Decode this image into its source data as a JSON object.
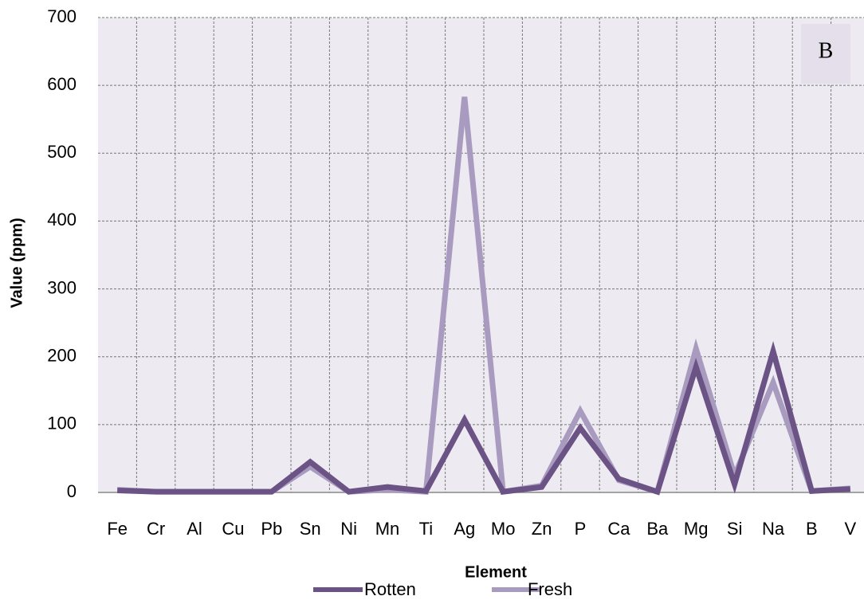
{
  "chart_data": {
    "type": "line",
    "x_label": "Element",
    "y_label": "Value (ppm)",
    "annotation": "B",
    "categories": [
      "Fe",
      "Cr",
      "Al",
      "Cu",
      "Pb",
      "Sn",
      "Ni",
      "Mn",
      "Ti",
      "Ag",
      "Mo",
      "Zn",
      "P",
      "Ca",
      "Ba",
      "Mg",
      "Si",
      "Na",
      "B",
      "V"
    ],
    "series": [
      {
        "name": "Rotten",
        "color": "#6b5385",
        "values": [
          3,
          1,
          1,
          1,
          1,
          45,
          1,
          8,
          2,
          107,
          1,
          8,
          95,
          20,
          1,
          185,
          12,
          208,
          2,
          5
        ]
      },
      {
        "name": "Fresh",
        "color": "#a99bc0",
        "values": [
          4,
          1,
          1,
          1,
          1,
          38,
          1,
          4,
          1,
          583,
          1,
          10,
          120,
          18,
          1,
          212,
          25,
          162,
          2,
          6
        ]
      }
    ],
    "ylim": [
      0,
      700
    ],
    "yticks": [
      0,
      100,
      200,
      300,
      400,
      500,
      600,
      700
    ],
    "grid": true,
    "legend": "bottom"
  }
}
